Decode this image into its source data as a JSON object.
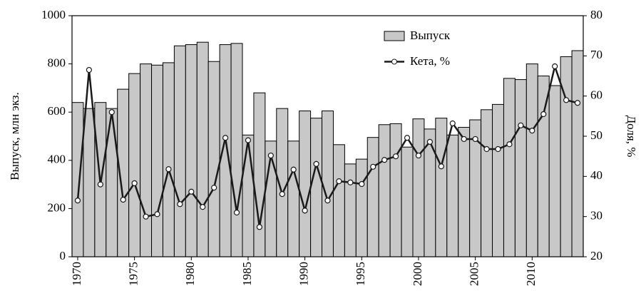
{
  "chart_data": {
    "type": "bar_line",
    "categories": [
      "1970",
      null,
      null,
      null,
      null,
      "1975",
      null,
      null,
      null,
      null,
      "1980",
      null,
      null,
      null,
      null,
      "1985",
      null,
      null,
      null,
      null,
      "1990",
      null,
      null,
      null,
      null,
      "1995",
      null,
      null,
      null,
      null,
      "2000",
      null,
      null,
      null,
      null,
      "2005",
      null,
      null,
      null,
      null,
      "2010",
      null,
      null,
      null,
      null
    ],
    "y_label": "Выпуск, млн экз.",
    "y2_label": "Доля, %",
    "ylim": [
      0,
      1000
    ],
    "yticks": [
      0,
      200,
      400,
      600,
      800,
      1000
    ],
    "y2lim": [
      20,
      80
    ],
    "y2ticks": [
      20,
      30,
      40,
      50,
      60,
      70,
      80
    ],
    "legend": "top-right",
    "series": [
      {
        "name": "Выпуск",
        "type": "bar",
        "color": "#c8c8c8",
        "values": [
          640,
          615,
          640,
          615,
          695,
          760,
          800,
          795,
          805,
          875,
          880,
          890,
          810,
          880,
          885,
          505,
          680,
          480,
          615,
          480,
          605,
          575,
          605,
          465,
          385,
          405,
          495,
          548,
          552,
          455,
          572,
          530,
          575,
          505,
          537,
          568,
          610,
          632,
          740,
          735,
          800,
          750,
          710,
          830,
          855
        ]
      },
      {
        "name": "Кета, %",
        "type": "line",
        "axis": "y2",
        "color": "#1a1a1a",
        "values": [
          34,
          66.5,
          38,
          56,
          34.2,
          38.3,
          30,
          30.6,
          41.8,
          33.1,
          36.2,
          32.4,
          37.2,
          49.6,
          31,
          49,
          27.4,
          45.2,
          35.6,
          41.7,
          31.5,
          43.1,
          34,
          38.8,
          38.5,
          38.1,
          42.4,
          44.1,
          45,
          49.6,
          45.2,
          48.6,
          42.5,
          53.2,
          49.3,
          49.3,
          46.8,
          46.8,
          48,
          52.7,
          51.4,
          55.5,
          67.4,
          59,
          58.3
        ]
      }
    ]
  }
}
